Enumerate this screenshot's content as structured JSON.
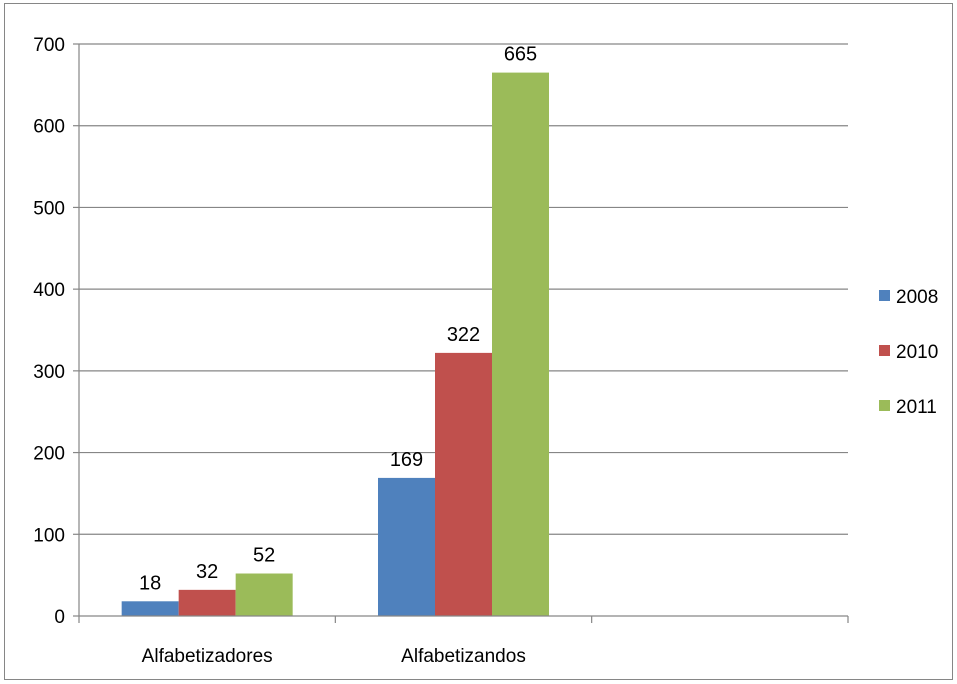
{
  "chart_data": {
    "type": "bar",
    "categories": [
      "Alfabetizadores",
      "Alfabetizandos",
      ""
    ],
    "series": [
      {
        "name": "2008",
        "values": [
          18,
          169,
          null
        ],
        "color": "#4F81BD"
      },
      {
        "name": "2010",
        "values": [
          32,
          322,
          null
        ],
        "color": "#C0504D"
      },
      {
        "name": "2011",
        "values": [
          52,
          665,
          null
        ],
        "color": "#9BBB59"
      }
    ],
    "yticks": [
      "0",
      "100",
      "200",
      "300",
      "400",
      "500",
      "600",
      "700"
    ],
    "ylim": [
      0,
      700
    ],
    "grid": true,
    "legend": "right",
    "data_labels": true
  }
}
